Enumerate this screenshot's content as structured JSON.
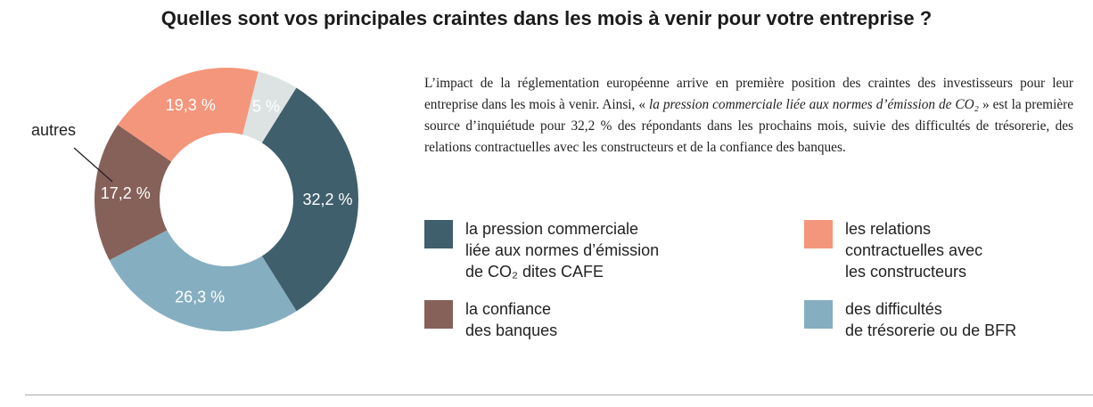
{
  "chart_data": {
    "type": "pie",
    "title": "Quelles sont vos principales craintes dans les mois à venir pour votre entreprise ?",
    "slices": [
      {
        "label": "la pression commerciale liée aux normes d’émission de CO₂ dites CAFE",
        "value": 32.2,
        "display": "32,2 %",
        "color": "#3f5f6c"
      },
      {
        "label": "des difficultés de trésorerie ou de BFR",
        "value": 26.3,
        "display": "26,3 %",
        "color": "#85afc0"
      },
      {
        "label": "la confiance des banques",
        "value": 17.2,
        "display": "17,2 %",
        "color": "#86615a"
      },
      {
        "label": "les relations contractuelles avec les constructeurs",
        "value": 19.3,
        "display": "19,3 %",
        "color": "#f4967b"
      },
      {
        "label": "autres",
        "value": 5,
        "display": "5 %",
        "color": "#dde3e3"
      }
    ],
    "callout_label": "autres"
  },
  "description": {
    "before": "L’impact de la réglementation européenne arrive en première position des craintes des investisseurs pour leur entreprise dans les mois à venir. Ainsi, « ",
    "quote": "la pression commerciale liée aux normes d’émission de CO₂",
    "after": " » est la première source d’inquiétude pour 32,2 % des répondants dans les prochains mois, suivie des difficultés de trésorerie, des relations contractuelles avec les constructeurs et de la confiance des banques."
  },
  "legend": [
    {
      "label": "la pression commerciale\nliée aux normes d’émission\nde CO₂ dites CAFE",
      "color": "#3f5f6c"
    },
    {
      "label": "les relations\ncontractuelles avec\nles constructeurs",
      "color": "#f4967b"
    },
    {
      "label": "la confiance\ndes banques",
      "color": "#86615a"
    },
    {
      "label": "des difficultés\nde trésorerie ou de BFR",
      "color": "#85afc0"
    }
  ]
}
